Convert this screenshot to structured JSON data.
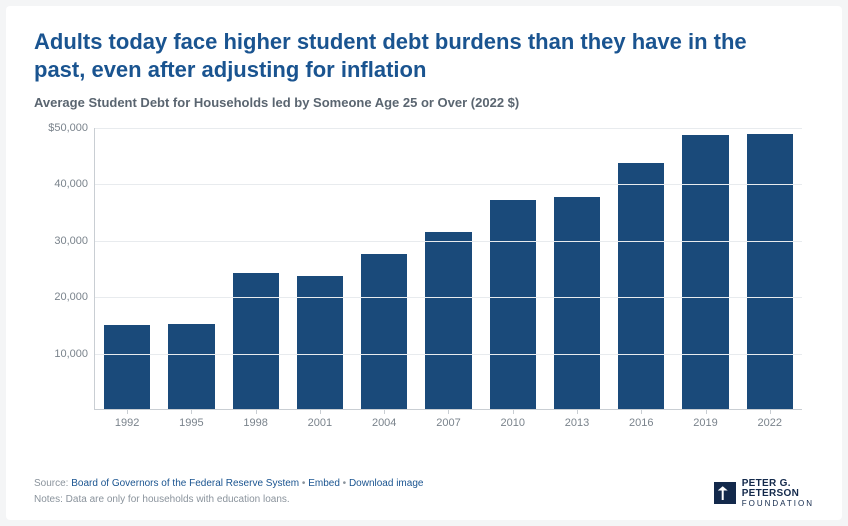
{
  "title": "Adults today face higher student debt burdens than they have in the past, even after adjusting for inflation",
  "subtitle": "Average Student Debt for Households led by Someone Age 25 or Over (2022 $)",
  "chart": {
    "type": "bar",
    "categories": [
      "1992",
      "1995",
      "1998",
      "2001",
      "2004",
      "2007",
      "2010",
      "2013",
      "2016",
      "2019",
      "2022"
    ],
    "values": [
      15000,
      15200,
      24200,
      23600,
      27500,
      31500,
      37200,
      37800,
      43700,
      48700,
      49000
    ],
    "bar_color": "#1a4a7a",
    "ymin": 0,
    "ymax": 50000,
    "ytick_step": 10000,
    "ytick_labels": [
      "10,000",
      "20,000",
      "30,000",
      "40,000",
      "$50,000"
    ],
    "grid_color": "#e8ebee",
    "axis_color": "#c9ced3",
    "background_color": "#ffffff",
    "label_fontsize": 11,
    "label_color": "#7a838c",
    "bar_width": 0.72
  },
  "footer": {
    "source_prefix": "Source: ",
    "source_link": "Board of Governors of the Federal Reserve System",
    "sep": " • ",
    "embed": "Embed",
    "download": "Download image",
    "notes": "Notes: Data are only for households with education loans."
  },
  "logo": {
    "line1": "PETER G.",
    "line2": "PETERSON",
    "line3": "FOUNDATION"
  },
  "colors": {
    "title": "#1a5490",
    "subtitle": "#5a6570",
    "card_bg": "#ffffff",
    "page_bg": "#f4f5f6",
    "logo": "#13294b"
  }
}
